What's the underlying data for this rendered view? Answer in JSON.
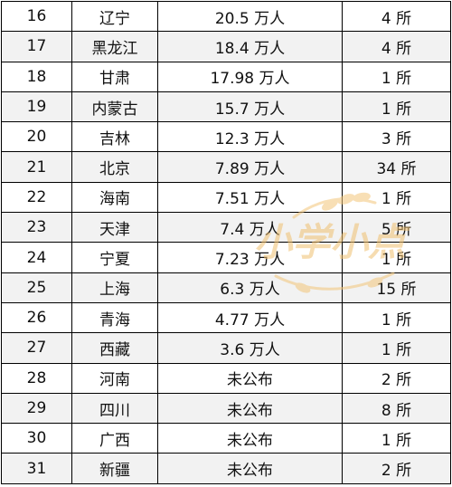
{
  "table": {
    "rows": [
      {
        "rank": "16",
        "province": "辽宁",
        "count": "20.5 万人",
        "universities": "4 所"
      },
      {
        "rank": "17",
        "province": "黑龙江",
        "count": "18.4 万人",
        "universities": "4 所"
      },
      {
        "rank": "18",
        "province": "甘肃",
        "count": "17.98 万人",
        "universities": "1 所"
      },
      {
        "rank": "19",
        "province": "内蒙古",
        "count": "15.7 万人",
        "universities": "1 所"
      },
      {
        "rank": "20",
        "province": "吉林",
        "count": "12.3 万人",
        "universities": "3 所"
      },
      {
        "rank": "21",
        "province": "北京",
        "count": "7.89 万人",
        "universities": "34 所"
      },
      {
        "rank": "22",
        "province": "海南",
        "count": "7.51 万人",
        "universities": "1 所"
      },
      {
        "rank": "23",
        "province": "天津",
        "count": "7.4 万人",
        "universities": "5 所"
      },
      {
        "rank": "24",
        "province": "宁夏",
        "count": "7.23 万人",
        "universities": "1 所"
      },
      {
        "rank": "25",
        "province": "上海",
        "count": "6.3 万人",
        "universities": "15 所"
      },
      {
        "rank": "26",
        "province": "青海",
        "count": "4.77 万人",
        "universities": "1 所"
      },
      {
        "rank": "27",
        "province": "西藏",
        "count": "3.6 万人",
        "universities": "1 所"
      },
      {
        "rank": "28",
        "province": "河南",
        "count": "未公布",
        "universities": "2 所"
      },
      {
        "rank": "29",
        "province": "四川",
        "count": "未公布",
        "universities": "8 所"
      },
      {
        "rank": "30",
        "province": "广西",
        "count": "未公布",
        "universities": "1 所"
      },
      {
        "rank": "31",
        "province": "新疆",
        "count": "未公布",
        "universities": "2 所"
      }
    ]
  },
  "watermark": {
    "text": "小学小点",
    "color": "#f0c070"
  }
}
